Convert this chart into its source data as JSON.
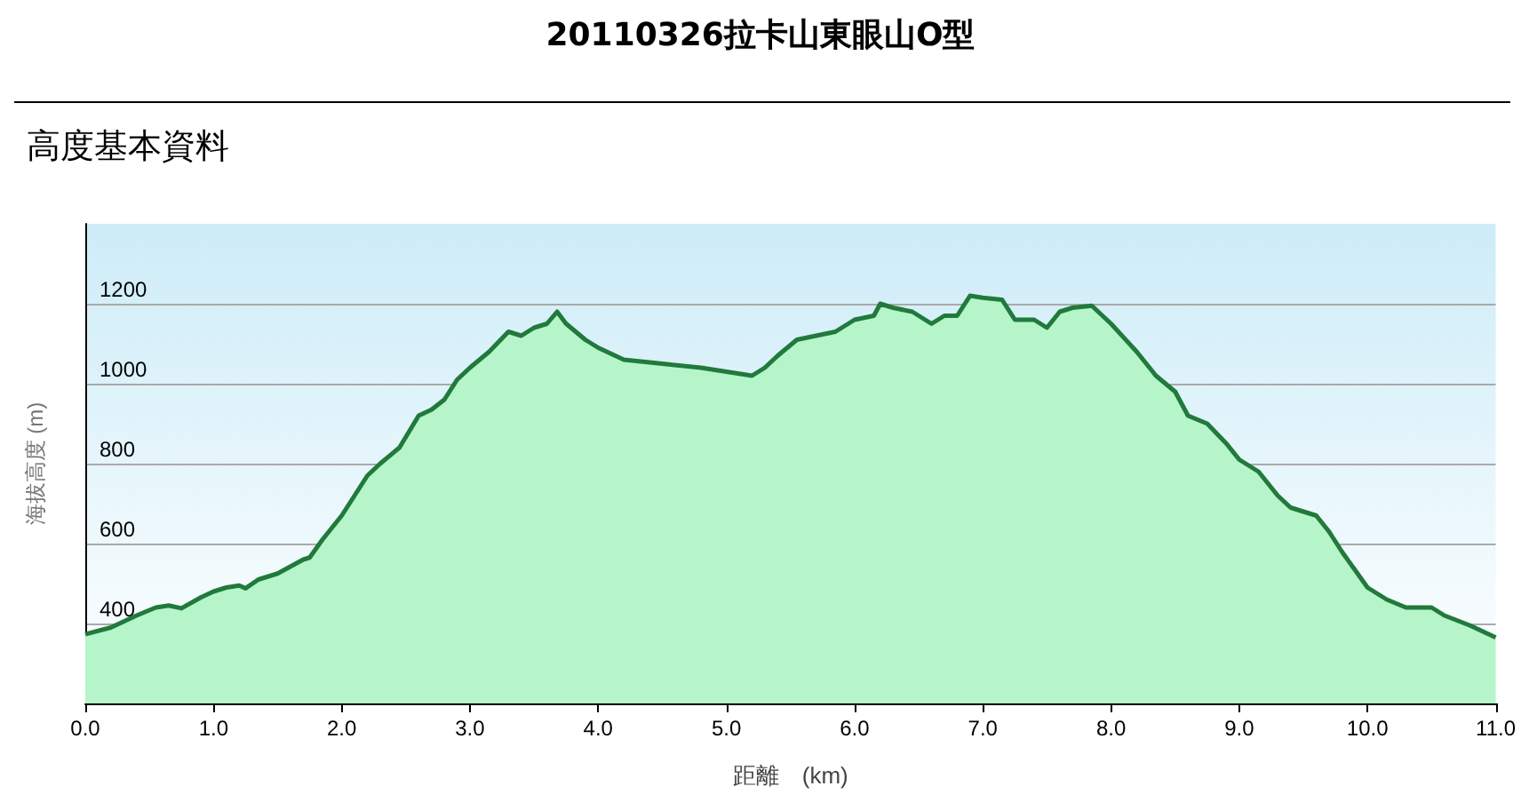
{
  "chart_data": {
    "type": "area",
    "title": "20110326拉卡山東眼山O型",
    "subtitle": "高度基本資料",
    "xlabel": "距離　(km)",
    "ylabel": "海拔高度 (m)",
    "xlim": [
      0,
      11
    ],
    "xticks": [
      {
        "value": 0,
        "label": "0.0"
      },
      {
        "value": 1,
        "label": "1.0"
      },
      {
        "value": 2,
        "label": "2.0"
      },
      {
        "value": 3,
        "label": "3.0"
      },
      {
        "value": 4,
        "label": "4.0"
      },
      {
        "value": 5,
        "label": "5.0"
      },
      {
        "value": 6,
        "label": "6.0"
      },
      {
        "value": 7,
        "label": "7.0"
      },
      {
        "value": 8,
        "label": "8.0"
      },
      {
        "value": 9,
        "label": "9.0"
      },
      {
        "value": 10,
        "label": "10.0"
      },
      {
        "value": 11,
        "label": "11.0"
      }
    ],
    "ylim": [
      200,
      1400
    ],
    "yticks": [
      400,
      600,
      800,
      1000,
      1200
    ],
    "grid": "y",
    "marker": "none",
    "line_style": "solid",
    "x": [
      0,
      0.2,
      0.4,
      0.55,
      0.65,
      0.75,
      0.9,
      1,
      1.1,
      1.2,
      1.25,
      1.35,
      1.5,
      1.7,
      1.75,
      1.85,
      2,
      2.1,
      2.2,
      2.3,
      2.45,
      2.6,
      2.7,
      2.8,
      2.9,
      3,
      3.15,
      3.3,
      3.4,
      3.5,
      3.6,
      3.68,
      3.75,
      3.9,
      4,
      4.2,
      4.5,
      4.8,
      5,
      5.2,
      5.3,
      5.4,
      5.55,
      5.7,
      5.85,
      6,
      6.15,
      6.2,
      6.3,
      6.45,
      6.6,
      6.7,
      6.8,
      6.9,
      7,
      7.15,
      7.25,
      7.4,
      7.5,
      7.6,
      7.7,
      7.85,
      8,
      8.2,
      8.35,
      8.5,
      8.6,
      8.75,
      8.9,
      9,
      9.15,
      9.3,
      9.4,
      9.6,
      9.7,
      9.8,
      10,
      10.15,
      10.3,
      10.5,
      10.6,
      10.8,
      11
    ],
    "series": [
      {
        "color": "#217a3c",
        "values": [
          373,
          390,
          420,
          440,
          445,
          438,
          465,
          480,
          490,
          495,
          488,
          510,
          525,
          560,
          565,
          610,
          670,
          720,
          770,
          800,
          840,
          920,
          935,
          960,
          1010,
          1040,
          1080,
          1130,
          1120,
          1140,
          1150,
          1180,
          1150,
          1110,
          1090,
          1060,
          1050,
          1040,
          1030,
          1020,
          1040,
          1070,
          1110,
          1120,
          1130,
          1160,
          1170,
          1200,
          1190,
          1180,
          1150,
          1170,
          1170,
          1220,
          1215,
          1210,
          1160,
          1160,
          1140,
          1180,
          1190,
          1195,
          1150,
          1080,
          1020,
          980,
          920,
          900,
          850,
          810,
          780,
          720,
          690,
          670,
          630,
          580,
          490,
          460,
          440,
          440,
          420,
          395,
          365
        ]
      }
    ]
  }
}
